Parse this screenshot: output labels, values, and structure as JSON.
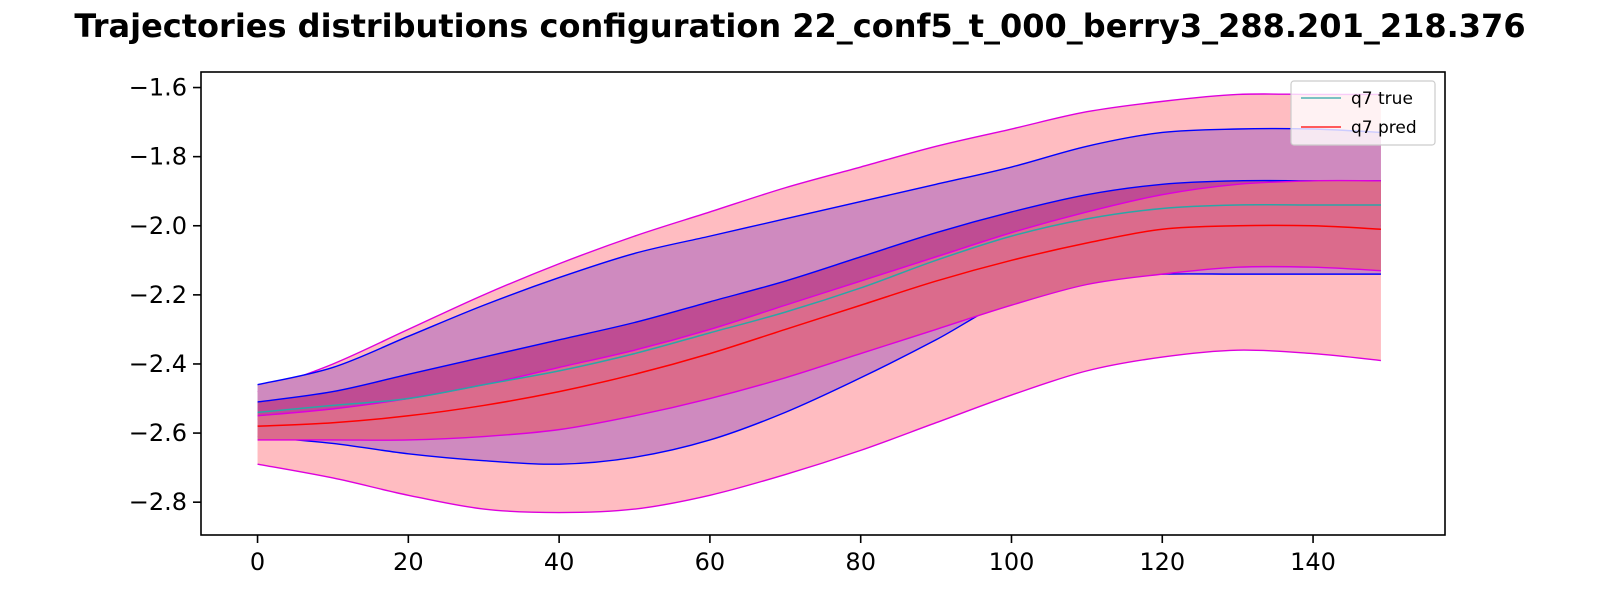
{
  "chart_data": {
    "type": "line",
    "title": "Trajectories distributions configuration  22_conf5_t_000_berry3_288.201_218.376",
    "xlabel": "",
    "ylabel": "",
    "xlim": [
      -7.5,
      157.5
    ],
    "ylim": [
      -2.895,
      -1.555
    ],
    "xticks": [
      0,
      20,
      40,
      60,
      80,
      100,
      120,
      140
    ],
    "yticks": [
      -1.6,
      -1.8,
      -2.0,
      -2.2,
      -2.4,
      -2.6,
      -2.8
    ],
    "xtick_labels": [
      "0",
      "20",
      "40",
      "60",
      "80",
      "100",
      "120",
      "140"
    ],
    "ytick_labels": [
      "−1.6",
      "−1.8",
      "−2.0",
      "−2.2",
      "−2.4",
      "−2.6",
      "−2.8"
    ],
    "legend_position": "upper right",
    "grid": false,
    "x": [
      0,
      10,
      20,
      30,
      40,
      50,
      60,
      70,
      80,
      90,
      100,
      110,
      120,
      130,
      140,
      149
    ],
    "bands": [
      {
        "role": "pred-outer",
        "fill": "#ffbcc1",
        "edge": "#dd00dd",
        "lower": [
          -2.69,
          -2.73,
          -2.78,
          -2.82,
          -2.83,
          -2.82,
          -2.78,
          -2.72,
          -2.65,
          -2.57,
          -2.49,
          -2.42,
          -2.38,
          -2.36,
          -2.37,
          -2.39
        ],
        "upper": [
          -2.48,
          -2.4,
          -2.3,
          -2.2,
          -2.11,
          -2.03,
          -1.96,
          -1.89,
          -1.83,
          -1.77,
          -1.72,
          -1.67,
          -1.64,
          -1.62,
          -1.62,
          -1.62
        ]
      },
      {
        "role": "true-outer",
        "fill": "#cf8abf",
        "edge": "#0000ff",
        "lower": [
          -2.61,
          -2.63,
          -2.66,
          -2.68,
          -2.69,
          -2.67,
          -2.62,
          -2.54,
          -2.44,
          -2.33,
          -2.21,
          -2.15,
          -2.14,
          -2.14,
          -2.14,
          -2.14
        ],
        "upper": [
          -2.46,
          -2.41,
          -2.32,
          -2.23,
          -2.15,
          -2.08,
          -2.03,
          -1.98,
          -1.93,
          -1.88,
          -1.83,
          -1.77,
          -1.73,
          -1.72,
          -1.72,
          -1.73
        ]
      },
      {
        "role": "true-inner",
        "fill": "#bf4c93",
        "edge": "#0000ff",
        "lower": [
          -2.56,
          -2.55,
          -2.54,
          -2.52,
          -2.49,
          -2.45,
          -2.4,
          -2.34,
          -2.26,
          -2.17,
          -2.08,
          -2.03,
          -2.01,
          -2.0,
          -2.0,
          -2.0
        ],
        "upper": [
          -2.51,
          -2.48,
          -2.43,
          -2.38,
          -2.33,
          -2.28,
          -2.22,
          -2.16,
          -2.09,
          -2.02,
          -1.96,
          -1.91,
          -1.88,
          -1.87,
          -1.87,
          -1.87
        ]
      },
      {
        "role": "pred-inner",
        "fill": "#db6b8c",
        "edge": "#dd00dd",
        "lower": [
          -2.62,
          -2.62,
          -2.62,
          -2.61,
          -2.59,
          -2.55,
          -2.5,
          -2.44,
          -2.37,
          -2.3,
          -2.23,
          -2.17,
          -2.14,
          -2.12,
          -2.12,
          -2.13
        ],
        "upper": [
          -2.55,
          -2.53,
          -2.5,
          -2.46,
          -2.41,
          -2.36,
          -2.3,
          -2.23,
          -2.16,
          -2.09,
          -2.02,
          -1.96,
          -1.91,
          -1.88,
          -1.87,
          -1.87
        ]
      }
    ],
    "series": [
      {
        "name": "q7 true",
        "color": "#2aa6a6",
        "values": [
          -2.54,
          -2.52,
          -2.5,
          -2.46,
          -2.42,
          -2.37,
          -2.31,
          -2.25,
          -2.18,
          -2.1,
          -2.03,
          -1.98,
          -1.95,
          -1.94,
          -1.94,
          -1.94
        ]
      },
      {
        "name": "q7 pred",
        "color": "#ff0000",
        "values": [
          -2.58,
          -2.57,
          -2.55,
          -2.52,
          -2.48,
          -2.43,
          -2.37,
          -2.3,
          -2.23,
          -2.16,
          -2.1,
          -2.05,
          -2.01,
          -2.0,
          -2.0,
          -2.01
        ]
      }
    ]
  }
}
